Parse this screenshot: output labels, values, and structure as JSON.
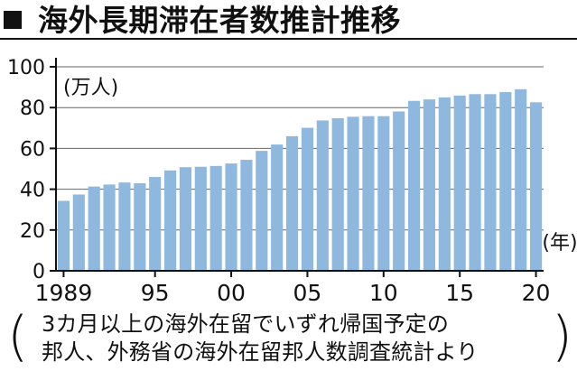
{
  "title": "海外長期滞在者数推計推移",
  "source_note": {
    "open_paren": "(",
    "line1": "3カ月以上の海外在留でいずれ帰国予定の",
    "line2": "邦人、外務省の海外在留邦人数調査統計より",
    "close_paren": ")"
  },
  "chart_data": {
    "type": "bar",
    "title": "海外長期滞在者数推計推移",
    "ylabel": "(万人)",
    "xlabel": "(年)",
    "ylim": [
      0,
      100
    ],
    "yticks": [
      0,
      20,
      40,
      60,
      80,
      100
    ],
    "grid": true,
    "bar_color": "#8fb8df",
    "axis_color": "#111111",
    "grid_color": "#666666",
    "categories": [
      "1989",
      "1990",
      "1991",
      "1992",
      "1993",
      "1994",
      "1995",
      "1996",
      "1997",
      "1998",
      "1999",
      "2000",
      "2001",
      "2002",
      "2003",
      "2004",
      "2005",
      "2006",
      "2007",
      "2008",
      "2009",
      "2010",
      "2011",
      "2012",
      "2013",
      "2014",
      "2015",
      "2016",
      "2017",
      "2018",
      "2019",
      "2020"
    ],
    "values": [
      34.3,
      37.4,
      41.3,
      42.3,
      43.3,
      42.9,
      46.0,
      49.2,
      50.8,
      51.0,
      51.4,
      52.6,
      54.4,
      58.8,
      61.9,
      66.0,
      70.1,
      73.7,
      74.8,
      75.5,
      75.8,
      75.8,
      78.1,
      83.3,
      84.0,
      85.0,
      85.9,
      86.6,
      86.6,
      87.6,
      89.0,
      82.6
    ],
    "x_tick_labels": [
      {
        "category": "1989",
        "label": "1989"
      },
      {
        "category": "1995",
        "label": "95"
      },
      {
        "category": "2000",
        "label": "00"
      },
      {
        "category": "2005",
        "label": "05"
      },
      {
        "category": "2010",
        "label": "10"
      },
      {
        "category": "2015",
        "label": "15"
      },
      {
        "category": "2020",
        "label": "20"
      }
    ]
  }
}
